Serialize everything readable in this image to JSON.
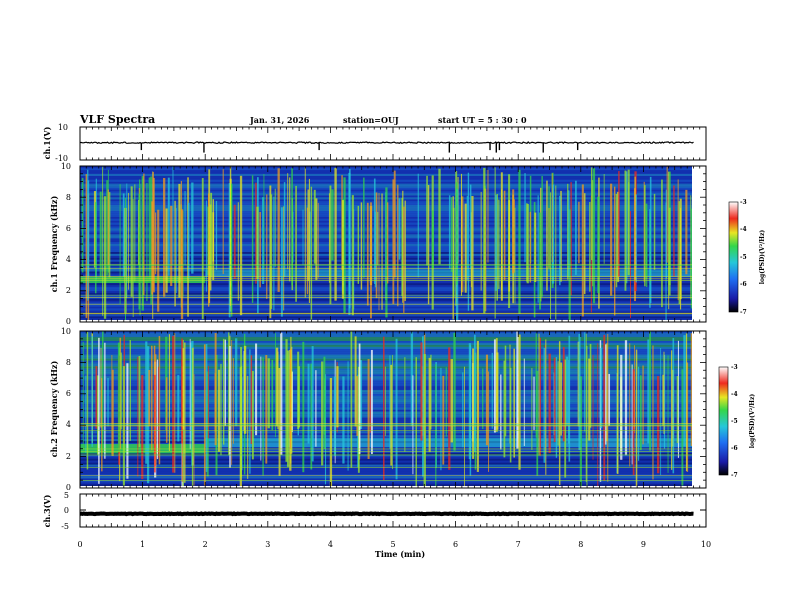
{
  "header": {
    "title": "VLF Spectra",
    "date": "Jan. 31, 2026",
    "station": "station=OUJ",
    "start": "start  UT =  5 : 30 : 0"
  },
  "colors": {
    "background": "#ffffff",
    "axes": "#000000",
    "spectrogram_base": "#0b1f8a"
  },
  "chart_data": {
    "type": "heatmap",
    "xlabel": "Time  (min)",
    "xlim": [
      0,
      10
    ],
    "x_ticks": [
      "0",
      "1",
      "2",
      "3",
      "4",
      "5",
      "6",
      "7",
      "8",
      "9",
      "10"
    ],
    "panels": [
      {
        "id": "ch1-waveform",
        "kind": "line",
        "ylabel": "ch.1(V)",
        "ylim": [
          -10,
          10
        ],
        "y_ticks": [
          "10",
          "-10"
        ],
        "baseline_V": 0.5,
        "noise_V": 0.4,
        "spikes_min": [
          0.98,
          1.98,
          3.82,
          5.9,
          6.55,
          6.65,
          6.7,
          7.4,
          7.95
        ]
      },
      {
        "id": "ch1-spectrogram",
        "kind": "spectrogram",
        "ylabel": "ch.1  Frequency  (kHz)",
        "ylim": [
          0,
          10
        ],
        "y_ticks": [
          "0",
          "2",
          "4",
          "6",
          "8",
          "10"
        ],
        "data_end_min": 9.8,
        "band_kHz": [
          2.5,
          2.9
        ],
        "band_end_min": 2.0,
        "colorbar": {
          "label": "log(PSD)(V²/Hz)",
          "ticks": [
            "-3",
            "-4",
            "-5",
            "-6",
            "-7"
          ],
          "range": [
            -7,
            -3
          ]
        }
      },
      {
        "id": "ch2-spectrogram",
        "kind": "spectrogram",
        "ylabel": "ch.2  Frequency  (kHz)",
        "ylim": [
          0,
          10
        ],
        "y_ticks": [
          "0",
          "2",
          "4",
          "6",
          "8",
          "10"
        ],
        "data_end_min": 9.8,
        "band_kHz": [
          2.2,
          2.8
        ],
        "band_end_min": 2.0,
        "colorbar": {
          "label": "log(PSD)(V²/Hz)",
          "ticks": [
            "-3",
            "-4",
            "-5",
            "-6",
            "-7"
          ],
          "range": [
            -7,
            -3
          ]
        }
      },
      {
        "id": "ch3-waveform",
        "kind": "line",
        "ylabel": "ch.3(V)",
        "ylim": [
          -5,
          5
        ],
        "y_ticks": [
          "5",
          "0",
          "-5"
        ],
        "baseline_V": -1.0,
        "noise_V": 0.1,
        "spikes_min": []
      }
    ]
  }
}
